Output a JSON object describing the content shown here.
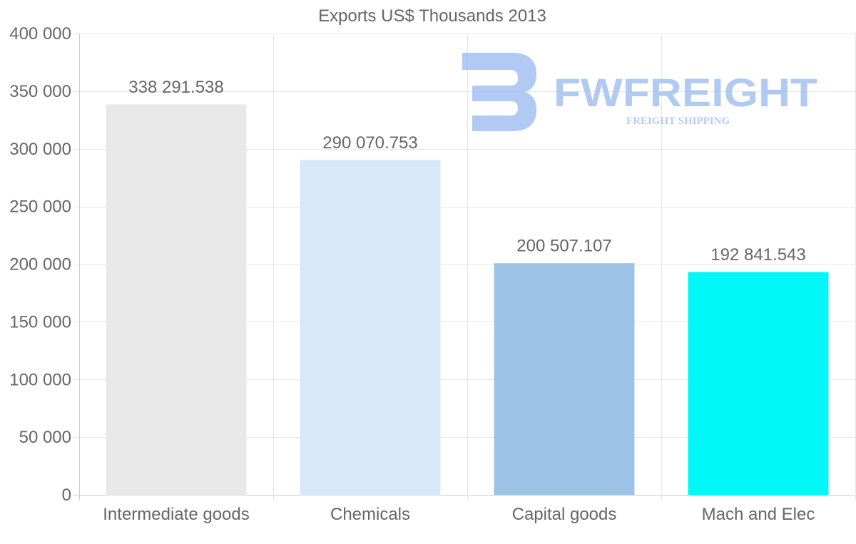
{
  "chart_data": {
    "type": "bar",
    "title": "Exports US$ Thousands 2013",
    "categories": [
      "Intermediate goods",
      "Chemicals",
      "Capital goods",
      "Mach and Elec"
    ],
    "values": [
      338291.538,
      290070.753,
      200507.107,
      192841.543
    ],
    "value_labels": [
      "338 291.538",
      "290 070.753",
      "200 507.107",
      "192 841.543"
    ],
    "colors": [
      "#e8e8e8",
      "#d8e8f8",
      "#9cc3e6",
      "#00f7f7"
    ],
    "ylim": [
      0,
      400000
    ],
    "yticks": [
      0,
      50000,
      100000,
      150000,
      200000,
      250000,
      300000,
      350000,
      400000
    ],
    "ytick_labels": [
      "0",
      "50 000",
      "100 000",
      "150 000",
      "200 000",
      "250 000",
      "300 000",
      "350 000",
      "400 000"
    ],
    "xlabel": "",
    "ylabel": "",
    "grid": true
  },
  "watermark": {
    "brand": "FWFREIGHT",
    "tagline": "FREIGHT SHIPPING",
    "color": "#9dbdf0"
  }
}
